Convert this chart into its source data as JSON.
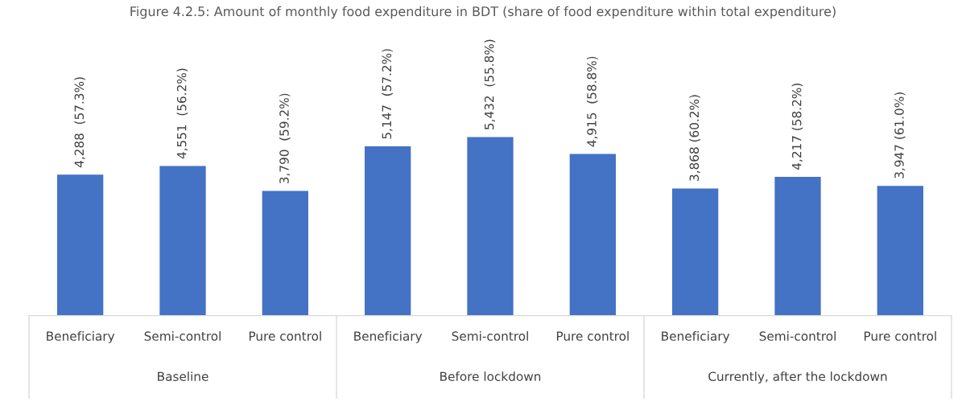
{
  "chart_data": {
    "type": "bar",
    "title": "Figure 4.2.5: Amount of monthly food expenditure in BDT (share of food expenditure within total expenditure)",
    "categories": [
      "Beneficiary",
      "Semi-control",
      "Pure control",
      "Beneficiary",
      "Semi-control",
      "Pure control",
      "Beneficiary",
      "Semi-control",
      "Pure control"
    ],
    "values": [
      4288,
      4551,
      3790,
      5147,
      5432,
      4915,
      3868,
      4217,
      3947
    ],
    "value_labels": [
      "4,288  (57.3%)",
      "4,551  (56.2%)",
      "3,790  (59.2%)",
      "5,147  (57.2%)",
      "5,432  (55.8%)",
      "4,915  (58.8%)",
      "3,868 (60.2%)",
      "4,217 (58.2%)",
      "3,947 (61.0%)"
    ],
    "color": "#4472c4",
    "annotations": [
      "Baseline",
      "Before lockdown",
      "Currently, after the lockdown"
    ],
    "grid": false,
    "legend": false
  }
}
